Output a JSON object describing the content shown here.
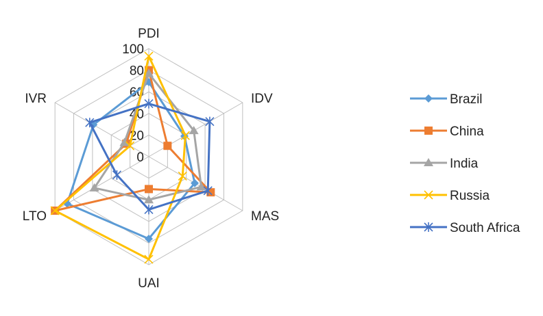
{
  "chart_data": {
    "type": "radar",
    "categories": [
      "PDI",
      "IDV",
      "MAS",
      "UAI",
      "LTO",
      "IVR"
    ],
    "rlim": [
      0,
      100
    ],
    "ticks": [
      "0",
      "20",
      "40",
      "60",
      "80",
      "100"
    ],
    "grid": true,
    "legend_position": "right",
    "series": [
      {
        "name": "Brazil",
        "color": "#5B9BD5",
        "marker": "diamond",
        "values": [
          69,
          38,
          49,
          76,
          87,
          59
        ]
      },
      {
        "name": "China",
        "color": "#ED7D31",
        "marker": "square",
        "values": [
          80,
          20,
          66,
          30,
          100,
          24
        ]
      },
      {
        "name": "India",
        "color": "#A5A5A5",
        "marker": "triangle",
        "values": [
          77,
          48,
          56,
          40,
          58,
          26
        ]
      },
      {
        "name": "Russia",
        "color": "#FFC000",
        "marker": "x",
        "values": [
          93,
          39,
          36,
          95,
          100,
          20
        ]
      },
      {
        "name": "South Africa",
        "color": "#4472C4",
        "marker": "asterisk",
        "values": [
          49,
          65,
          63,
          49,
          34,
          63
        ]
      }
    ]
  }
}
